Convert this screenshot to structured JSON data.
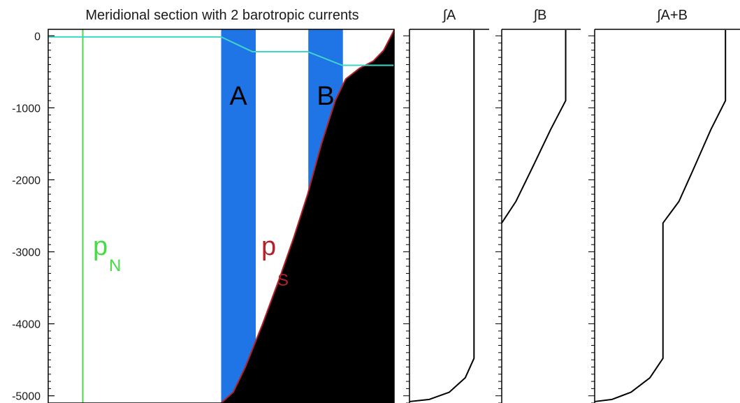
{
  "chart_data": [
    {
      "type": "area",
      "title": "Meridional section with 2 barotropic currents",
      "xlabel": "",
      "ylabel": "",
      "ylim": [
        -5100,
        90
      ],
      "yticks": [
        0,
        -1000,
        -2000,
        -3000,
        -4000,
        -5000
      ],
      "yticklabels": [
        "0",
        "-1000",
        "-2000",
        "-3000",
        "-4000",
        "-5000"
      ],
      "grid": false,
      "colors": {
        "current": "#1f74e6",
        "bottom": "#000000",
        "bottom_edge": "#b3222a",
        "p_n": "#44dd44",
        "p_s": "#b3222a",
        "interface": "#3fd6c8"
      },
      "current_labels": [
        "A",
        "B"
      ],
      "p_n_label": "p",
      "p_n_sub": "N",
      "p_s_label": "p",
      "p_s_sub": "S",
      "bottom_depth": [
        [
          0.5,
          -5100
        ],
        [
          0.535,
          -4950
        ],
        [
          0.57,
          -4600
        ],
        [
          0.62,
          -4000
        ],
        [
          0.67,
          -3350
        ],
        [
          0.71,
          -2800
        ],
        [
          0.75,
          -2200
        ],
        [
          0.79,
          -1500
        ],
        [
          0.83,
          -900
        ],
        [
          0.86,
          -600
        ],
        [
          0.9,
          -450
        ],
        [
          0.94,
          -350
        ],
        [
          0.97,
          -200
        ],
        [
          1.0,
          80
        ]
      ],
      "interface_depth": [
        [
          0.0,
          -15
        ],
        [
          0.5,
          -15
        ],
        [
          0.59,
          -220
        ],
        [
          0.75,
          -220
        ],
        [
          0.85,
          -410
        ],
        [
          1.0,
          -410
        ]
      ],
      "current_A_x": [
        0.5,
        0.6
      ],
      "current_B_x": [
        0.752,
        0.852
      ],
      "p_n_x": 0.1
    },
    {
      "type": "line",
      "title": "∫A",
      "ylim": [
        -5100,
        90
      ],
      "series": [
        {
          "values": [
            [
              0.81,
              80
            ],
            [
              0.81,
              -4480
            ],
            [
              0.7,
              -4750
            ],
            [
              0.5,
              -4950
            ],
            [
              0.25,
              -5050
            ],
            [
              0.0,
              -5080
            ]
          ]
        }
      ]
    },
    {
      "type": "line",
      "title": "∫B",
      "ylim": [
        -5100,
        90
      ],
      "series": [
        {
          "values": [
            [
              0.81,
              80
            ],
            [
              0.81,
              -900
            ],
            [
              0.62,
              -1300
            ],
            [
              0.38,
              -1850
            ],
            [
              0.18,
              -2300
            ],
            [
              0.0,
              -2600
            ]
          ]
        }
      ]
    },
    {
      "type": "line",
      "title": "∫A+B",
      "ylim": [
        -5100,
        90
      ],
      "series": [
        {
          "values": [
            [
              0.9,
              80
            ],
            [
              0.9,
              -900
            ],
            [
              0.8,
              -1300
            ],
            [
              0.68,
              -1850
            ],
            [
              0.58,
              -2300
            ],
            [
              0.47,
              -2600
            ],
            [
              0.47,
              -4480
            ],
            [
              0.38,
              -4750
            ],
            [
              0.25,
              -4950
            ],
            [
              0.12,
              -5050
            ],
            [
              0.0,
              -5080
            ]
          ]
        }
      ]
    }
  ]
}
